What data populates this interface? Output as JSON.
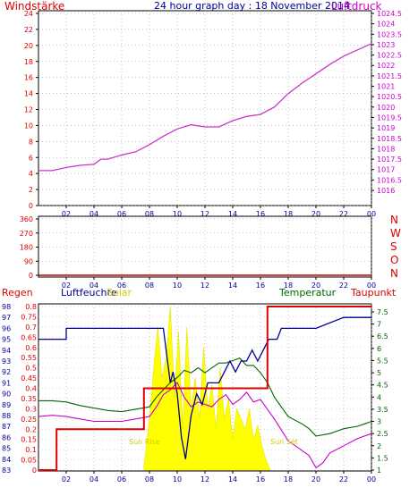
{
  "chart_data": [
    {
      "type": "line",
      "title": "24 hour graph day : 18 November 2014",
      "left_label": "Windstärke",
      "right_label": "Luftdruck",
      "x_ticks": [
        "02",
        "04",
        "06",
        "08",
        "10",
        "12",
        "14",
        "16",
        "18",
        "20",
        "22",
        "00"
      ],
      "y_left_ticks": [
        "0",
        "2",
        "4",
        "6",
        "8",
        "10",
        "12",
        "14",
        "16",
        "18",
        "20",
        "22",
        "24"
      ],
      "y_right_ticks": [
        "1016",
        "1016.5",
        "1017",
        "1017.5",
        "1018",
        "1018.5",
        "1019",
        "1019.5",
        "1020",
        "1020.5",
        "1021",
        "1021.5",
        "1022",
        "1022.5",
        "1023",
        "1023.5",
        "1024",
        "1024.5"
      ],
      "grid": true,
      "series": [
        {
          "name": "Luftdruck",
          "color": "#cc33cc",
          "x_hours": [
            0,
            1,
            2,
            3,
            4,
            4.5,
            5,
            6,
            7,
            8,
            9,
            10,
            11,
            12,
            13,
            14,
            15,
            16,
            17,
            18,
            19,
            20,
            21,
            22,
            23,
            24
          ],
          "values": [
            1016.95,
            1016.95,
            1017.1,
            1017.2,
            1017.25,
            1017.5,
            1017.5,
            1017.7,
            1017.85,
            1018.2,
            1018.6,
            1018.95,
            1019.15,
            1019.05,
            1019.05,
            1019.35,
            1019.55,
            1019.65,
            1020.0,
            1020.65,
            1021.15,
            1021.6,
            1022.05,
            1022.45,
            1022.75,
            1023.05
          ]
        }
      ]
    },
    {
      "type": "line",
      "right_labels": [
        "N",
        "W",
        "S",
        "O",
        "N"
      ],
      "y_left_ticks": [
        "0",
        "90",
        "180",
        "270",
        "360"
      ],
      "x_ticks": [
        "02",
        "04",
        "06",
        "08",
        "10",
        "12",
        "14",
        "16",
        "18",
        "20",
        "22",
        "00"
      ],
      "grid": true,
      "series": [
        {
          "name": "Windrichtung",
          "color": "#cc0000",
          "x_hours": [
            0,
            24
          ],
          "values": [
            0,
            0
          ]
        }
      ]
    },
    {
      "type": "line",
      "labels": {
        "regen": "Regen",
        "luftfeuchte": "Luftfeuchte",
        "solar": "Solar",
        "temperatur": "Temperatur",
        "taupunkt": "Taupunkt"
      },
      "annotations": [
        "Sun Rise",
        "Sun Set"
      ],
      "y_regen_ticks": [
        "0",
        "0.05",
        "0.1",
        "0.15",
        "0.2",
        "0.25",
        "0.3",
        "0.35",
        "0.4",
        "0.45",
        "0.5",
        "0.55",
        "0.6",
        "0.65",
        "0.7",
        "0.75",
        "0.8"
      ],
      "y_humidity_ticks": [
        "83",
        "84",
        "85",
        "86",
        "87",
        "88",
        "89",
        "90",
        "91",
        "92",
        "93",
        "94",
        "95",
        "96",
        "97",
        "98"
      ],
      "y_temp_ticks": [
        "1",
        "1.5",
        "2",
        "2.5",
        "3",
        "3.5",
        "4",
        "4.5",
        "5",
        "5.5",
        "6",
        "6.5",
        "7",
        "7.5"
      ],
      "x_ticks": [
        "02",
        "04",
        "06",
        "08",
        "10",
        "12",
        "14",
        "16",
        "18",
        "20",
        "22",
        "00"
      ],
      "grid": true,
      "series": [
        {
          "name": "Regen",
          "color": "#dd0000",
          "x_hours": [
            0,
            1.3,
            1.3,
            7.6,
            7.6,
            16.5,
            16.5,
            24
          ],
          "values": [
            0,
            0,
            0.2,
            0.2,
            0.4,
            0.4,
            0.8,
            0.8
          ]
        },
        {
          "name": "Luftfeuchte",
          "color": "#000099",
          "x_hours": [
            0,
            2,
            2,
            7.2,
            7.8,
            8.2,
            8.6,
            9.0,
            9.2,
            9.5,
            9.7,
            10.0,
            10.3,
            10.6,
            11.0,
            11.4,
            11.8,
            12.2,
            12.6,
            13.0,
            13.4,
            13.8,
            14.2,
            14.6,
            15.0,
            15.4,
            15.8,
            16.2,
            16.6,
            17.2,
            17.5,
            18,
            20,
            22,
            24
          ],
          "values": [
            95,
            95,
            96,
            96,
            96,
            96,
            96,
            96,
            94,
            91,
            92,
            90,
            86,
            84,
            88,
            90,
            89,
            91,
            91,
            91,
            92,
            93,
            92,
            93,
            93,
            94,
            93,
            94,
            95,
            95,
            96,
            96,
            96,
            97,
            97
          ]
        },
        {
          "name": "Temperatur",
          "color": "#006600",
          "x_hours": [
            0,
            1,
            2,
            3,
            4,
            5,
            6,
            7,
            8,
            8.5,
            9,
            9.5,
            10,
            10.5,
            11,
            11.5,
            12,
            12.5,
            13,
            13.5,
            14,
            14.5,
            15,
            15.5,
            16,
            16.5,
            17,
            18,
            19,
            19.5,
            20,
            21,
            22,
            23,
            23.5,
            24
          ],
          "values": [
            3.85,
            3.85,
            3.8,
            3.65,
            3.55,
            3.45,
            3.4,
            3.5,
            3.6,
            4.0,
            4.3,
            4.6,
            4.8,
            5.1,
            5.0,
            5.2,
            5.0,
            5.2,
            5.4,
            5.4,
            5.5,
            5.6,
            5.3,
            5.3,
            5.0,
            4.6,
            4.0,
            3.2,
            2.9,
            2.7,
            2.4,
            2.5,
            2.7,
            2.8,
            2.9,
            3.0
          ]
        },
        {
          "name": "Taupunkt",
          "color": "#cc00cc",
          "x_hours": [
            0,
            1,
            2,
            3,
            4,
            5,
            6,
            7,
            8,
            8.5,
            9,
            9.5,
            10,
            10.5,
            11,
            11.5,
            12,
            12.5,
            13,
            13.5,
            14,
            14.5,
            15,
            15.5,
            16,
            16.5,
            17,
            18,
            19,
            19.5,
            20,
            20.5,
            21,
            22,
            23,
            24
          ],
          "values": [
            3.2,
            3.25,
            3.2,
            3.1,
            3.0,
            3.0,
            3.0,
            3.1,
            3.2,
            3.6,
            4.1,
            4.3,
            4.6,
            4.0,
            3.6,
            3.8,
            3.7,
            3.6,
            3.9,
            4.1,
            3.7,
            3.9,
            4.2,
            3.8,
            3.9,
            3.5,
            3.1,
            2.2,
            1.8,
            1.6,
            1.1,
            1.3,
            1.7,
            2.0,
            2.3,
            2.5
          ]
        },
        {
          "name": "Solar",
          "color": "#ffff00",
          "x_hours": [
            7.6,
            8.0,
            8.3,
            8.6,
            8.9,
            9.2,
            9.5,
            9.8,
            10.1,
            10.4,
            10.7,
            11.0,
            11.3,
            11.6,
            11.9,
            12.2,
            12.5,
            12.8,
            13.1,
            13.4,
            13.7,
            14.0,
            14.3,
            14.6,
            14.9,
            15.2,
            15.5,
            15.8,
            16.1,
            16.4,
            16.7
          ],
          "values": [
            0.02,
            0.25,
            0.5,
            0.7,
            0.45,
            0.55,
            0.8,
            0.35,
            0.68,
            0.2,
            0.7,
            0.3,
            0.45,
            0.25,
            0.6,
            0.3,
            0.42,
            0.2,
            0.5,
            0.25,
            0.35,
            0.15,
            0.3,
            0.25,
            0.2,
            0.3,
            0.15,
            0.22,
            0.12,
            0.05,
            0.0
          ]
        }
      ]
    }
  ]
}
